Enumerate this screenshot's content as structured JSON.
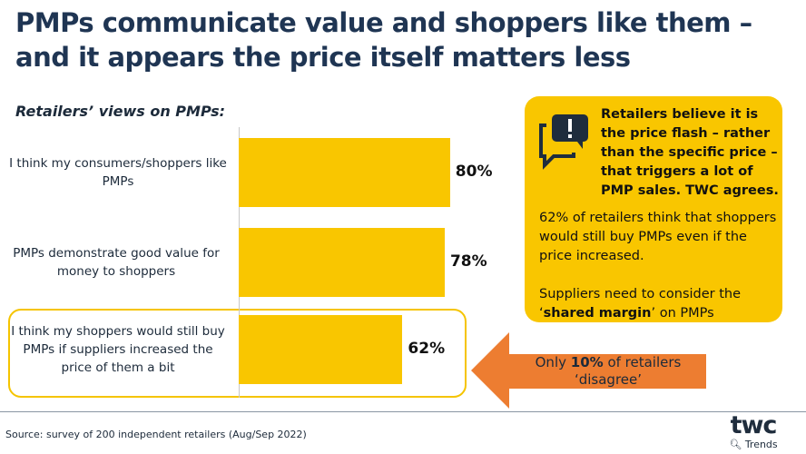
{
  "title": "PMPs communicate value and shoppers like them – and it appears the price itself matters less",
  "chart_data": {
    "type": "bar",
    "orientation": "horizontal",
    "title": "Retailers’ views on PMPs:",
    "categories": [
      "I think my consumers/shoppers like PMPs",
      "PMPs demonstrate good value for money to shoppers",
      "I think my shoppers would still buy PMPs if suppliers increased the price of them a bit"
    ],
    "values": [
      80,
      78,
      62
    ],
    "labels": [
      "80%",
      "78%",
      "62%"
    ],
    "xlim": [
      0,
      100
    ],
    "grid": false,
    "highlighted_category": 2,
    "color": "#f9c600"
  },
  "callout": {
    "headline": "Retailers believe it is the price flash – rather than the specific price – that triggers a lot of PMP sales.   TWC agrees.",
    "para1": "62% of retailers think that shoppers would still buy PMPs even if the price increased.",
    "para2_pre": "Suppliers need to consider the ‘",
    "para2_bold": "shared margin",
    "para2_post": "’ on PMPs",
    "icon": "speech-bubble-exclamation-icon",
    "color": "#f9c600"
  },
  "arrow_note": {
    "pre": "Only ",
    "bold": "10%",
    "post": " of retailers ‘disagree’",
    "color": "#ed7d31"
  },
  "source": "Source: survey of 200 independent retailers (Aug/Sep 2022)",
  "logo": {
    "name": "twc",
    "sub": "Trends"
  }
}
